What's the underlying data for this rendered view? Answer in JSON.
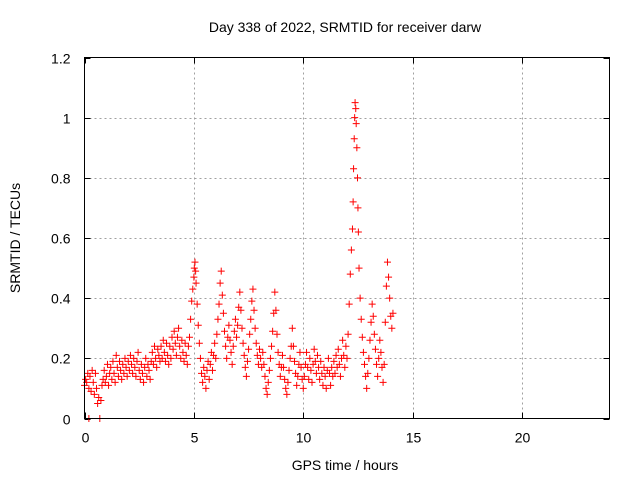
{
  "chart_data": {
    "type": "scatter",
    "title": "Day 338 of 2022, SRMTID for receiver darw",
    "xlabel": "GPS time / hours",
    "ylabel": "SRMTID / TECUs",
    "xlim": [
      0,
      24
    ],
    "ylim": [
      0,
      1.2
    ],
    "xticks": [
      0,
      5,
      10,
      15,
      20
    ],
    "xtick_labels": [
      "0",
      "5",
      "10",
      "15",
      "20"
    ],
    "yticks": [
      0,
      0.2,
      0.4,
      0.6,
      0.8,
      1.0,
      1.2
    ],
    "ytick_labels": [
      "0",
      "0.2",
      "0.4",
      "0.6",
      "0.8",
      "1",
      "1.2"
    ],
    "grid": true,
    "marker": "+",
    "color": "#ff0000",
    "series": [
      {
        "name": "SRMTID",
        "points": [
          [
            0.0,
            0.11
          ],
          [
            0.05,
            0.13
          ],
          [
            0.1,
            0.12
          ],
          [
            0.15,
            0.15
          ],
          [
            0.2,
            0.1
          ],
          [
            0.25,
            0.14
          ],
          [
            0.3,
            0.09
          ],
          [
            0.35,
            0.16
          ],
          [
            0.4,
            0.12
          ],
          [
            0.45,
            0.08
          ],
          [
            0.5,
            0.15
          ],
          [
            0.55,
            0.1
          ],
          [
            0.2,
            0.0
          ],
          [
            0.7,
            0.0
          ],
          [
            0.6,
            0.05
          ],
          [
            0.65,
            0.07
          ],
          [
            0.75,
            0.06
          ],
          [
            0.8,
            0.11
          ],
          [
            0.85,
            0.13
          ],
          [
            0.9,
            0.16
          ],
          [
            0.95,
            0.12
          ],
          [
            1.0,
            0.14
          ],
          [
            1.05,
            0.18
          ],
          [
            1.1,
            0.11
          ],
          [
            1.15,
            0.15
          ],
          [
            1.2,
            0.17
          ],
          [
            1.25,
            0.13
          ],
          [
            1.3,
            0.19
          ],
          [
            1.35,
            0.15
          ],
          [
            1.4,
            0.12
          ],
          [
            1.45,
            0.21
          ],
          [
            1.5,
            0.17
          ],
          [
            1.55,
            0.14
          ],
          [
            1.6,
            0.19
          ],
          [
            1.65,
            0.16
          ],
          [
            1.7,
            0.13
          ],
          [
            1.75,
            0.18
          ],
          [
            1.8,
            0.15
          ],
          [
            1.85,
            0.2
          ],
          [
            1.9,
            0.17
          ],
          [
            1.95,
            0.14
          ],
          [
            2.0,
            0.19
          ],
          [
            2.05,
            0.16
          ],
          [
            2.1,
            0.21
          ],
          [
            2.15,
            0.18
          ],
          [
            2.2,
            0.15
          ],
          [
            2.25,
            0.2
          ],
          [
            2.3,
            0.17
          ],
          [
            2.35,
            0.14
          ],
          [
            2.4,
            0.19
          ],
          [
            2.45,
            0.22
          ],
          [
            2.5,
            0.16
          ],
          [
            2.55,
            0.13
          ],
          [
            2.6,
            0.18
          ],
          [
            2.65,
            0.15
          ],
          [
            2.7,
            0.12
          ],
          [
            2.75,
            0.17
          ],
          [
            2.8,
            0.2
          ],
          [
            2.85,
            0.14
          ],
          [
            2.9,
            0.18
          ],
          [
            2.95,
            0.16
          ],
          [
            3.0,
            0.13
          ],
          [
            3.05,
            0.19
          ],
          [
            3.1,
            0.22
          ],
          [
            3.15,
            0.18
          ],
          [
            3.2,
            0.24
          ],
          [
            3.25,
            0.2
          ],
          [
            3.3,
            0.17
          ],
          [
            3.35,
            0.23
          ],
          [
            3.4,
            0.21
          ],
          [
            3.45,
            0.19
          ],
          [
            3.5,
            0.24
          ],
          [
            3.55,
            0.2
          ],
          [
            3.6,
            0.26
          ],
          [
            3.65,
            0.22
          ],
          [
            3.7,
            0.19
          ],
          [
            3.75,
            0.25
          ],
          [
            3.8,
            0.21
          ],
          [
            3.85,
            0.18
          ],
          [
            3.9,
            0.24
          ],
          [
            3.95,
            0.2
          ],
          [
            4.0,
            0.27
          ],
          [
            4.05,
            0.23
          ],
          [
            4.1,
            0.29
          ],
          [
            4.15,
            0.25
          ],
          [
            4.2,
            0.21
          ],
          [
            4.25,
            0.27
          ],
          [
            4.3,
            0.3
          ],
          [
            4.35,
            0.24
          ],
          [
            4.4,
            0.2
          ],
          [
            4.45,
            0.26
          ],
          [
            4.5,
            0.22
          ],
          [
            4.55,
            0.19
          ],
          [
            4.6,
            0.25
          ],
          [
            4.65,
            0.21
          ],
          [
            4.7,
            0.18
          ],
          [
            4.75,
            0.24
          ],
          [
            4.8,
            0.27
          ],
          [
            4.85,
            0.33
          ],
          [
            4.9,
            0.39
          ],
          [
            4.95,
            0.43
          ],
          [
            5.0,
            0.47
          ],
          [
            5.02,
            0.5
          ],
          [
            5.05,
            0.52
          ],
          [
            5.08,
            0.49
          ],
          [
            5.1,
            0.45
          ],
          [
            5.15,
            0.38
          ],
          [
            5.2,
            0.31
          ],
          [
            5.25,
            0.25
          ],
          [
            5.3,
            0.2
          ],
          [
            5.35,
            0.15
          ],
          [
            5.4,
            0.12
          ],
          [
            5.45,
            0.17
          ],
          [
            5.5,
            0.14
          ],
          [
            5.55,
            0.1
          ],
          [
            5.6,
            0.16
          ],
          [
            5.65,
            0.19
          ],
          [
            5.7,
            0.13
          ],
          [
            5.75,
            0.18
          ],
          [
            5.8,
            0.22
          ],
          [
            5.85,
            0.16
          ],
          [
            5.9,
            0.21
          ],
          [
            5.95,
            0.25
          ],
          [
            6.0,
            0.2
          ],
          [
            6.05,
            0.28
          ],
          [
            6.1,
            0.33
          ],
          [
            6.15,
            0.38
          ],
          [
            6.2,
            0.45
          ],
          [
            6.25,
            0.49
          ],
          [
            6.3,
            0.41
          ],
          [
            6.35,
            0.35
          ],
          [
            6.4,
            0.29
          ],
          [
            6.45,
            0.24
          ],
          [
            6.5,
            0.2
          ],
          [
            6.55,
            0.27
          ],
          [
            6.6,
            0.31
          ],
          [
            6.65,
            0.26
          ],
          [
            6.7,
            0.22
          ],
          [
            6.75,
            0.18
          ],
          [
            6.8,
            0.24
          ],
          [
            6.85,
            0.29
          ],
          [
            6.9,
            0.33
          ],
          [
            6.95,
            0.27
          ],
          [
            7.0,
            0.31
          ],
          [
            7.05,
            0.37
          ],
          [
            7.1,
            0.42
          ],
          [
            7.15,
            0.36
          ],
          [
            7.2,
            0.3
          ],
          [
            7.25,
            0.25
          ],
          [
            7.3,
            0.21
          ],
          [
            7.35,
            0.17
          ],
          [
            7.4,
            0.14
          ],
          [
            7.45,
            0.19
          ],
          [
            7.5,
            0.23
          ],
          [
            7.55,
            0.28
          ],
          [
            7.6,
            0.33
          ],
          [
            7.65,
            0.39
          ],
          [
            7.7,
            0.43
          ],
          [
            7.75,
            0.36
          ],
          [
            7.8,
            0.3
          ],
          [
            7.85,
            0.25
          ],
          [
            7.9,
            0.21
          ],
          [
            7.95,
            0.18
          ],
          [
            8.0,
            0.23
          ],
          [
            8.05,
            0.2
          ],
          [
            8.1,
            0.17
          ],
          [
            8.15,
            0.22
          ],
          [
            8.2,
            0.18
          ],
          [
            8.25,
            0.14
          ],
          [
            8.3,
            0.1
          ],
          [
            8.35,
            0.08
          ],
          [
            8.4,
            0.12
          ],
          [
            8.45,
            0.16
          ],
          [
            8.5,
            0.2
          ],
          [
            8.55,
            0.24
          ],
          [
            8.6,
            0.29
          ],
          [
            8.65,
            0.35
          ],
          [
            8.7,
            0.42
          ],
          [
            8.75,
            0.36
          ],
          [
            8.8,
            0.28
          ],
          [
            8.85,
            0.22
          ],
          [
            8.9,
            0.18
          ],
          [
            8.95,
            0.14
          ],
          [
            9.0,
            0.17
          ],
          [
            9.05,
            0.21
          ],
          [
            9.1,
            0.17
          ],
          [
            9.15,
            0.13
          ],
          [
            9.2,
            0.1
          ],
          [
            9.25,
            0.08
          ],
          [
            9.3,
            0.12
          ],
          [
            9.35,
            0.16
          ],
          [
            9.4,
            0.2
          ],
          [
            9.45,
            0.24
          ],
          [
            9.5,
            0.3
          ],
          [
            9.55,
            0.24
          ],
          [
            9.6,
            0.19
          ],
          [
            9.65,
            0.15
          ],
          [
            9.7,
            0.11
          ],
          [
            9.75,
            0.14
          ],
          [
            9.8,
            0.18
          ],
          [
            9.85,
            0.22
          ],
          [
            9.9,
            0.17
          ],
          [
            9.95,
            0.13
          ],
          [
            10.0,
            0.1
          ],
          [
            10.05,
            0.14
          ],
          [
            10.1,
            0.18
          ],
          [
            10.15,
            0.22
          ],
          [
            10.2,
            0.17
          ],
          [
            10.25,
            0.13
          ],
          [
            10.3,
            0.2
          ],
          [
            10.35,
            0.16
          ],
          [
            10.4,
            0.12
          ],
          [
            10.45,
            0.18
          ],
          [
            10.5,
            0.23
          ],
          [
            10.55,
            0.19
          ],
          [
            10.6,
            0.15
          ],
          [
            10.65,
            0.21
          ],
          [
            10.7,
            0.17
          ],
          [
            10.75,
            0.13
          ],
          [
            10.8,
            0.19
          ],
          [
            10.85,
            0.15
          ],
          [
            10.9,
            0.11
          ],
          [
            10.95,
            0.17
          ],
          [
            11.0,
            0.14
          ],
          [
            11.05,
            0.1
          ],
          [
            11.1,
            0.16
          ],
          [
            11.15,
            0.2
          ],
          [
            11.2,
            0.15
          ],
          [
            11.25,
            0.11
          ],
          [
            11.3,
            0.17
          ],
          [
            11.35,
            0.14
          ],
          [
            11.4,
            0.19
          ],
          [
            11.45,
            0.15
          ],
          [
            11.5,
            0.21
          ],
          [
            11.55,
            0.17
          ],
          [
            11.6,
            0.23
          ],
          [
            11.65,
            0.18
          ],
          [
            11.7,
            0.14
          ],
          [
            11.75,
            0.2
          ],
          [
            11.8,
            0.26
          ],
          [
            11.85,
            0.21
          ],
          [
            11.9,
            0.17
          ],
          [
            11.95,
            0.24
          ],
          [
            12.0,
            0.2
          ],
          [
            12.05,
            0.28
          ],
          [
            12.1,
            0.38
          ],
          [
            12.15,
            0.48
          ],
          [
            12.2,
            0.56
          ],
          [
            12.25,
            0.63
          ],
          [
            12.28,
            0.72
          ],
          [
            12.3,
            0.83
          ],
          [
            12.33,
            0.93
          ],
          [
            12.35,
            1.0
          ],
          [
            12.37,
            1.05
          ],
          [
            12.4,
            1.03
          ],
          [
            12.42,
            0.98
          ],
          [
            12.45,
            0.9
          ],
          [
            12.48,
            0.8
          ],
          [
            12.5,
            0.7
          ],
          [
            12.52,
            0.62
          ],
          [
            12.55,
            0.5
          ],
          [
            12.6,
            0.4
          ],
          [
            12.65,
            0.33
          ],
          [
            12.7,
            0.27
          ],
          [
            12.75,
            0.22
          ],
          [
            12.8,
            0.18
          ],
          [
            12.85,
            0.14
          ],
          [
            12.9,
            0.1
          ],
          [
            12.95,
            0.15
          ],
          [
            13.0,
            0.2
          ],
          [
            13.05,
            0.26
          ],
          [
            13.1,
            0.32
          ],
          [
            13.15,
            0.38
          ],
          [
            13.2,
            0.34
          ],
          [
            13.25,
            0.28
          ],
          [
            13.3,
            0.23
          ],
          [
            13.35,
            0.18
          ],
          [
            13.4,
            0.14
          ],
          [
            13.45,
            0.2
          ],
          [
            13.5,
            0.26
          ],
          [
            13.55,
            0.22
          ],
          [
            13.6,
            0.17
          ],
          [
            13.65,
            0.12
          ],
          [
            13.7,
            0.18
          ],
          [
            13.75,
            0.32
          ],
          [
            13.8,
            0.44
          ],
          [
            13.85,
            0.52
          ],
          [
            13.9,
            0.47
          ],
          [
            13.95,
            0.4
          ],
          [
            14.0,
            0.34
          ],
          [
            14.05,
            0.3
          ],
          [
            14.1,
            0.35
          ]
        ]
      }
    ]
  }
}
